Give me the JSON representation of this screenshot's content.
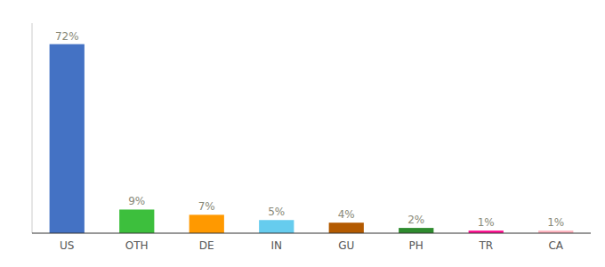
{
  "chart_data": {
    "type": "bar",
    "categories": [
      "US",
      "OTH",
      "DE",
      "IN",
      "GU",
      "PH",
      "TR",
      "CA"
    ],
    "values": [
      72,
      9,
      7,
      5,
      4,
      2,
      1,
      1
    ],
    "value_labels": [
      "72%",
      "9%",
      "7%",
      "5%",
      "4%",
      "2%",
      "1%",
      "1%"
    ],
    "colors": [
      "#4472C4",
      "#3DBF3D",
      "#FF9900",
      "#66CCEE",
      "#B35A00",
      "#2E8B2E",
      "#FF1493",
      "#FFB6C1"
    ],
    "ylim": [
      0,
      80
    ],
    "data_labels": true,
    "tick_labels": "x",
    "grid": false
  }
}
